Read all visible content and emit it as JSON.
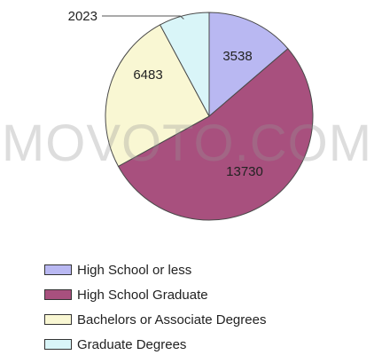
{
  "chart_data": {
    "type": "pie",
    "categories": [
      "High School or less",
      "High School Graduate",
      "Bachelors or Associate Degrees",
      "Graduate Degrees"
    ],
    "values": [
      3538,
      13730,
      6483,
      2023
    ],
    "colors": [
      "#b9b8f2",
      "#a8507e",
      "#f9f7d3",
      "#d9f5f8"
    ],
    "data_labels": [
      "3538",
      "13730",
      "6483",
      "2023"
    ],
    "start_angle": "12 o'clock",
    "direction": "clockwise",
    "legend_position": "bottom"
  },
  "watermark": "MOVOTO.COM"
}
